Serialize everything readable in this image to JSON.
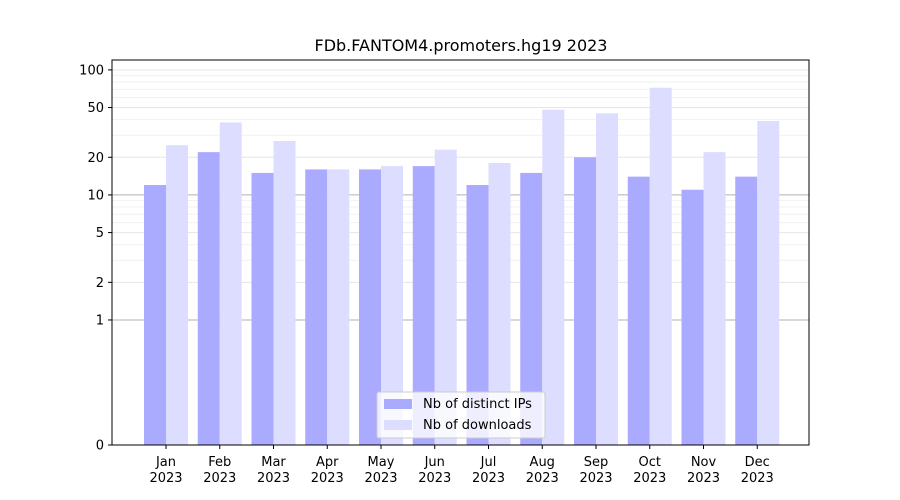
{
  "chart_data": {
    "type": "bar",
    "title": "FDb.FANTOM4.promoters.hg19 2023",
    "xlabel": "",
    "ylabel": "",
    "scale": "symlog",
    "categories": [
      [
        "Jan",
        "2023"
      ],
      [
        "Feb",
        "2023"
      ],
      [
        "Mar",
        "2023"
      ],
      [
        "Apr",
        "2023"
      ],
      [
        "May",
        "2023"
      ],
      [
        "Jun",
        "2023"
      ],
      [
        "Jul",
        "2023"
      ],
      [
        "Aug",
        "2023"
      ],
      [
        "Sep",
        "2023"
      ],
      [
        "Oct",
        "2023"
      ],
      [
        "Nov",
        "2023"
      ],
      [
        "Dec",
        "2023"
      ]
    ],
    "series": [
      {
        "name": "Nb of distinct IPs",
        "color": "#aaaaff",
        "values": [
          12,
          22,
          15,
          16,
          16,
          17,
          12,
          15,
          20,
          14,
          11,
          14
        ]
      },
      {
        "name": "Nb of downloads",
        "color": "#ddddff",
        "values": [
          25,
          38,
          27,
          16,
          17,
          23,
          18,
          48,
          45,
          72,
          22,
          39
        ]
      }
    ],
    "yticks": [
      0,
      1,
      2,
      5,
      10,
      20,
      50,
      100
    ],
    "ylim": [
      0,
      120
    ],
    "grid": true,
    "legend_position": "bottom-center"
  }
}
